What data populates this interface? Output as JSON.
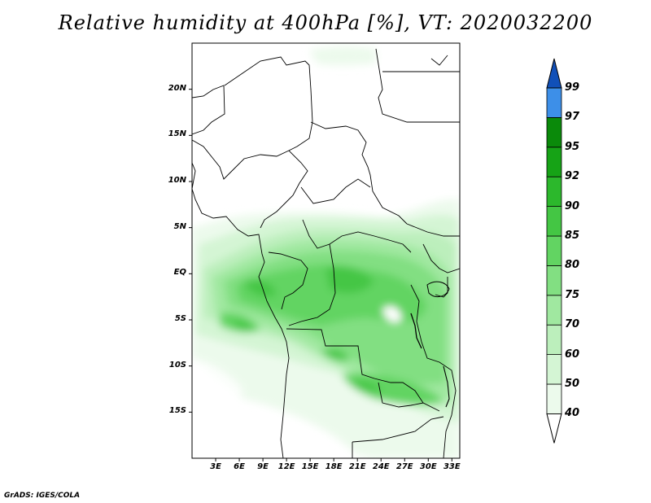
{
  "title": "Relative humidity at 400hPa [%], VT: 2020032200",
  "map": {
    "lon_range": [
      0,
      34
    ],
    "lat_range": [
      -20,
      25
    ],
    "lat_ticks": [
      "20N",
      "15N",
      "10N",
      "5N",
      "EQ",
      "5S",
      "10S",
      "15S"
    ],
    "lon_ticks": [
      "3E",
      "6E",
      "9E",
      "12E",
      "15E",
      "18E",
      "21E",
      "24E",
      "27E",
      "30E",
      "33E"
    ]
  },
  "colorbar": {
    "levels": [
      "40",
      "50",
      "60",
      "70",
      "75",
      "80",
      "85",
      "90",
      "92",
      "95",
      "97",
      "99"
    ],
    "colors": [
      "#ecfaec",
      "#d4f5d4",
      "#bcefbc",
      "#a0e8a0",
      "#82df82",
      "#62d462",
      "#44c644",
      "#2cb82c",
      "#16a316",
      "#0a8a0a",
      "#3d8fe8",
      "#1e6fd6",
      "#1150b8"
    ]
  },
  "credit": "GrADS: IGES/COLA"
}
